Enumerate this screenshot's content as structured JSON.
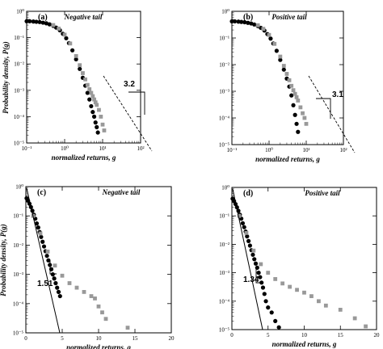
{
  "ylabel_text": "Probability density, P(g)",
  "chart_data": [
    {
      "type": "scatter",
      "panel": "(a)",
      "title": "Negative tail",
      "xlabel": "normalized returns, g",
      "xscale": "log",
      "yscale": "log",
      "xlim": [
        0.1,
        100
      ],
      "ylim": [
        1e-05,
        1
      ],
      "xticks": [
        "10⁻¹",
        "10⁰",
        "10¹",
        "10²"
      ],
      "yticks": [
        "10⁰",
        "10⁻¹",
        "10⁻²",
        "10⁻³",
        "10⁻⁴",
        "10⁻⁵"
      ],
      "slope_label": "3.2",
      "series": [
        {
          "color": "#000000",
          "marker": "circle",
          "x": [
            0.1,
            0.12,
            0.15,
            0.18,
            0.22,
            0.27,
            0.33,
            0.4,
            0.5,
            0.6,
            0.75,
            0.9,
            1.1,
            1.3,
            1.6,
            2.0,
            2.5,
            3.0,
            3.5,
            4.0,
            4.5,
            5.0,
            5.5,
            6.0,
            6.5,
            7.0,
            7.5
          ],
          "y": [
            0.42,
            0.42,
            0.41,
            0.4,
            0.39,
            0.37,
            0.35,
            0.32,
            0.28,
            0.24,
            0.19,
            0.14,
            0.095,
            0.062,
            0.033,
            0.015,
            0.0065,
            0.003,
            0.0015,
            0.0008,
            0.00045,
            0.00025,
            0.00015,
            0.0001,
            6e-05,
            4e-05,
            2.5e-05
          ]
        },
        {
          "color": "#999999",
          "marker": "square",
          "x": [
            0.5,
            0.7,
            1.0,
            1.4,
            2.0,
            2.5,
            3.0,
            3.5,
            4.0,
            4.5,
            5.0,
            5.5,
            6.0,
            6.5,
            7.0,
            8.0,
            9.0,
            10.0,
            11.0
          ],
          "y": [
            0.3,
            0.22,
            0.13,
            0.06,
            0.02,
            0.009,
            0.0045,
            0.0026,
            0.0016,
            0.0011,
            0.0008,
            0.0006,
            0.00045,
            0.00035,
            0.00028,
            0.00018,
            0.0001,
            5e-05,
            3e-05
          ]
        }
      ]
    },
    {
      "type": "scatter",
      "panel": "(b)",
      "title": "Positive tail",
      "xlabel": "normalized returns, g",
      "xscale": "log",
      "yscale": "log",
      "xlim": [
        0.1,
        100
      ],
      "ylim": [
        1e-05,
        1
      ],
      "xticks": [
        "10⁻¹",
        "10⁰",
        "10¹",
        "10²"
      ],
      "yticks": [
        "10⁰",
        "10⁻¹",
        "10⁻²",
        "10⁻³",
        "10⁻⁴",
        "10⁻⁵"
      ],
      "slope_label": "3.1",
      "series": [
        {
          "color": "#000000",
          "marker": "circle",
          "x": [
            0.1,
            0.12,
            0.15,
            0.18,
            0.22,
            0.27,
            0.33,
            0.4,
            0.5,
            0.6,
            0.75,
            0.9,
            1.1,
            1.3,
            1.6,
            2.0,
            2.5,
            3.0,
            3.5,
            4.0,
            4.5,
            5.0,
            5.5,
            6.0
          ],
          "y": [
            0.42,
            0.42,
            0.41,
            0.4,
            0.39,
            0.37,
            0.35,
            0.32,
            0.28,
            0.24,
            0.19,
            0.14,
            0.095,
            0.062,
            0.033,
            0.015,
            0.0065,
            0.003,
            0.0015,
            0.0007,
            0.0003,
            0.00013,
            6e-05,
            3e-05
          ]
        },
        {
          "color": "#999999",
          "marker": "square",
          "x": [
            0.5,
            0.7,
            1.0,
            1.4,
            2.0,
            2.5,
            3.0,
            3.5,
            4.0,
            4.5,
            5.0,
            5.5,
            6.0,
            7.0,
            8.0,
            9.0,
            10.0
          ],
          "y": [
            0.3,
            0.22,
            0.13,
            0.06,
            0.02,
            0.009,
            0.0045,
            0.0026,
            0.0016,
            0.0011,
            0.0008,
            0.0006,
            0.00045,
            0.00025,
            0.00015,
            0.0001,
            6e-05
          ]
        }
      ]
    },
    {
      "type": "scatter",
      "panel": "(c)",
      "title": "Negative tail",
      "xlabel": "normalized returns, g",
      "xscale": "linear",
      "yscale": "log",
      "xlim": [
        0,
        20
      ],
      "ylim": [
        1e-05,
        1
      ],
      "xticks": [
        "0",
        "5",
        "10",
        "15",
        "20"
      ],
      "yticks": [
        "10⁰",
        "10⁻¹",
        "10⁻²",
        "10⁻³",
        "10⁻⁴",
        "10⁻⁵"
      ],
      "slope_label": "1.51",
      "series": [
        {
          "color": "#000000",
          "marker": "circle",
          "x": [
            0.1,
            0.3,
            0.5,
            0.7,
            0.9,
            1.1,
            1.3,
            1.5,
            1.7,
            1.9,
            2.1,
            2.3,
            2.5,
            2.7,
            2.9,
            3.1,
            3.3,
            3.5,
            3.7,
            3.9,
            4.1,
            4.3,
            4.5,
            4.7
          ],
          "y": [
            0.4,
            0.33,
            0.26,
            0.2,
            0.15,
            0.11,
            0.08,
            0.055,
            0.04,
            0.028,
            0.019,
            0.013,
            0.009,
            0.0062,
            0.0043,
            0.003,
            0.0021,
            0.0015,
            0.001,
            0.00072,
            0.0005,
            0.00035,
            0.00025,
            0.00018
          ]
        },
        {
          "color": "#999999",
          "marker": "square",
          "x": [
            1.0,
            2.0,
            3.0,
            4.0,
            5.0,
            6.0,
            7.0,
            8.0,
            9.0,
            9.5,
            10.0,
            10.5,
            11.0,
            14.0
          ],
          "y": [
            0.1,
            0.025,
            0.006,
            0.002,
            0.0009,
            0.0005,
            0.00035,
            0.00025,
            0.00018,
            0.00015,
            8e-05,
            5e-05,
            3e-05,
            1.5e-05
          ]
        }
      ]
    },
    {
      "type": "scatter",
      "panel": "(d)",
      "title": "Positive tail",
      "xlabel": "normalized returns, g",
      "xscale": "linear",
      "yscale": "log",
      "xlim": [
        0,
        20
      ],
      "ylim": [
        1e-05,
        1
      ],
      "xticks": [
        "0",
        "5",
        "10",
        "15",
        "20"
      ],
      "yticks": [
        "10⁰",
        "10⁻¹",
        "10⁻²",
        "10⁻³",
        "10⁻⁴",
        "10⁻⁵"
      ],
      "slope_label": "1.34",
      "series": [
        {
          "color": "#000000",
          "marker": "circle",
          "x": [
            0.1,
            0.3,
            0.5,
            0.7,
            0.9,
            1.1,
            1.3,
            1.5,
            1.7,
            1.9,
            2.1,
            2.3,
            2.5,
            2.7,
            2.9,
            3.1,
            3.3,
            3.5,
            3.7,
            3.9,
            4.1,
            4.3,
            4.5,
            4.7,
            5.0,
            5.5,
            6.0,
            6.5
          ],
          "y": [
            0.4,
            0.33,
            0.26,
            0.2,
            0.15,
            0.11,
            0.08,
            0.055,
            0.04,
            0.028,
            0.019,
            0.013,
            0.009,
            0.0062,
            0.0043,
            0.003,
            0.0021,
            0.0015,
            0.001,
            0.0007,
            0.00045,
            0.0003,
            0.00018,
            0.0001,
            6e-05,
            4e-05,
            2e-05,
            1.2e-05
          ]
        },
        {
          "color": "#999999",
          "marker": "square",
          "x": [
            1.0,
            2.0,
            3.0,
            4.0,
            5.0,
            6.0,
            7.0,
            8.0,
            9.0,
            10.0,
            11.0,
            12.0,
            13.0,
            15.0,
            17.0,
            18.5
          ],
          "y": [
            0.1,
            0.025,
            0.006,
            0.002,
            0.001,
            0.0006,
            0.00042,
            0.00032,
            0.00025,
            0.0002,
            0.00015,
            0.0001,
            7e-05,
            5e-05,
            2.5e-05,
            1.3e-05
          ]
        }
      ]
    }
  ]
}
